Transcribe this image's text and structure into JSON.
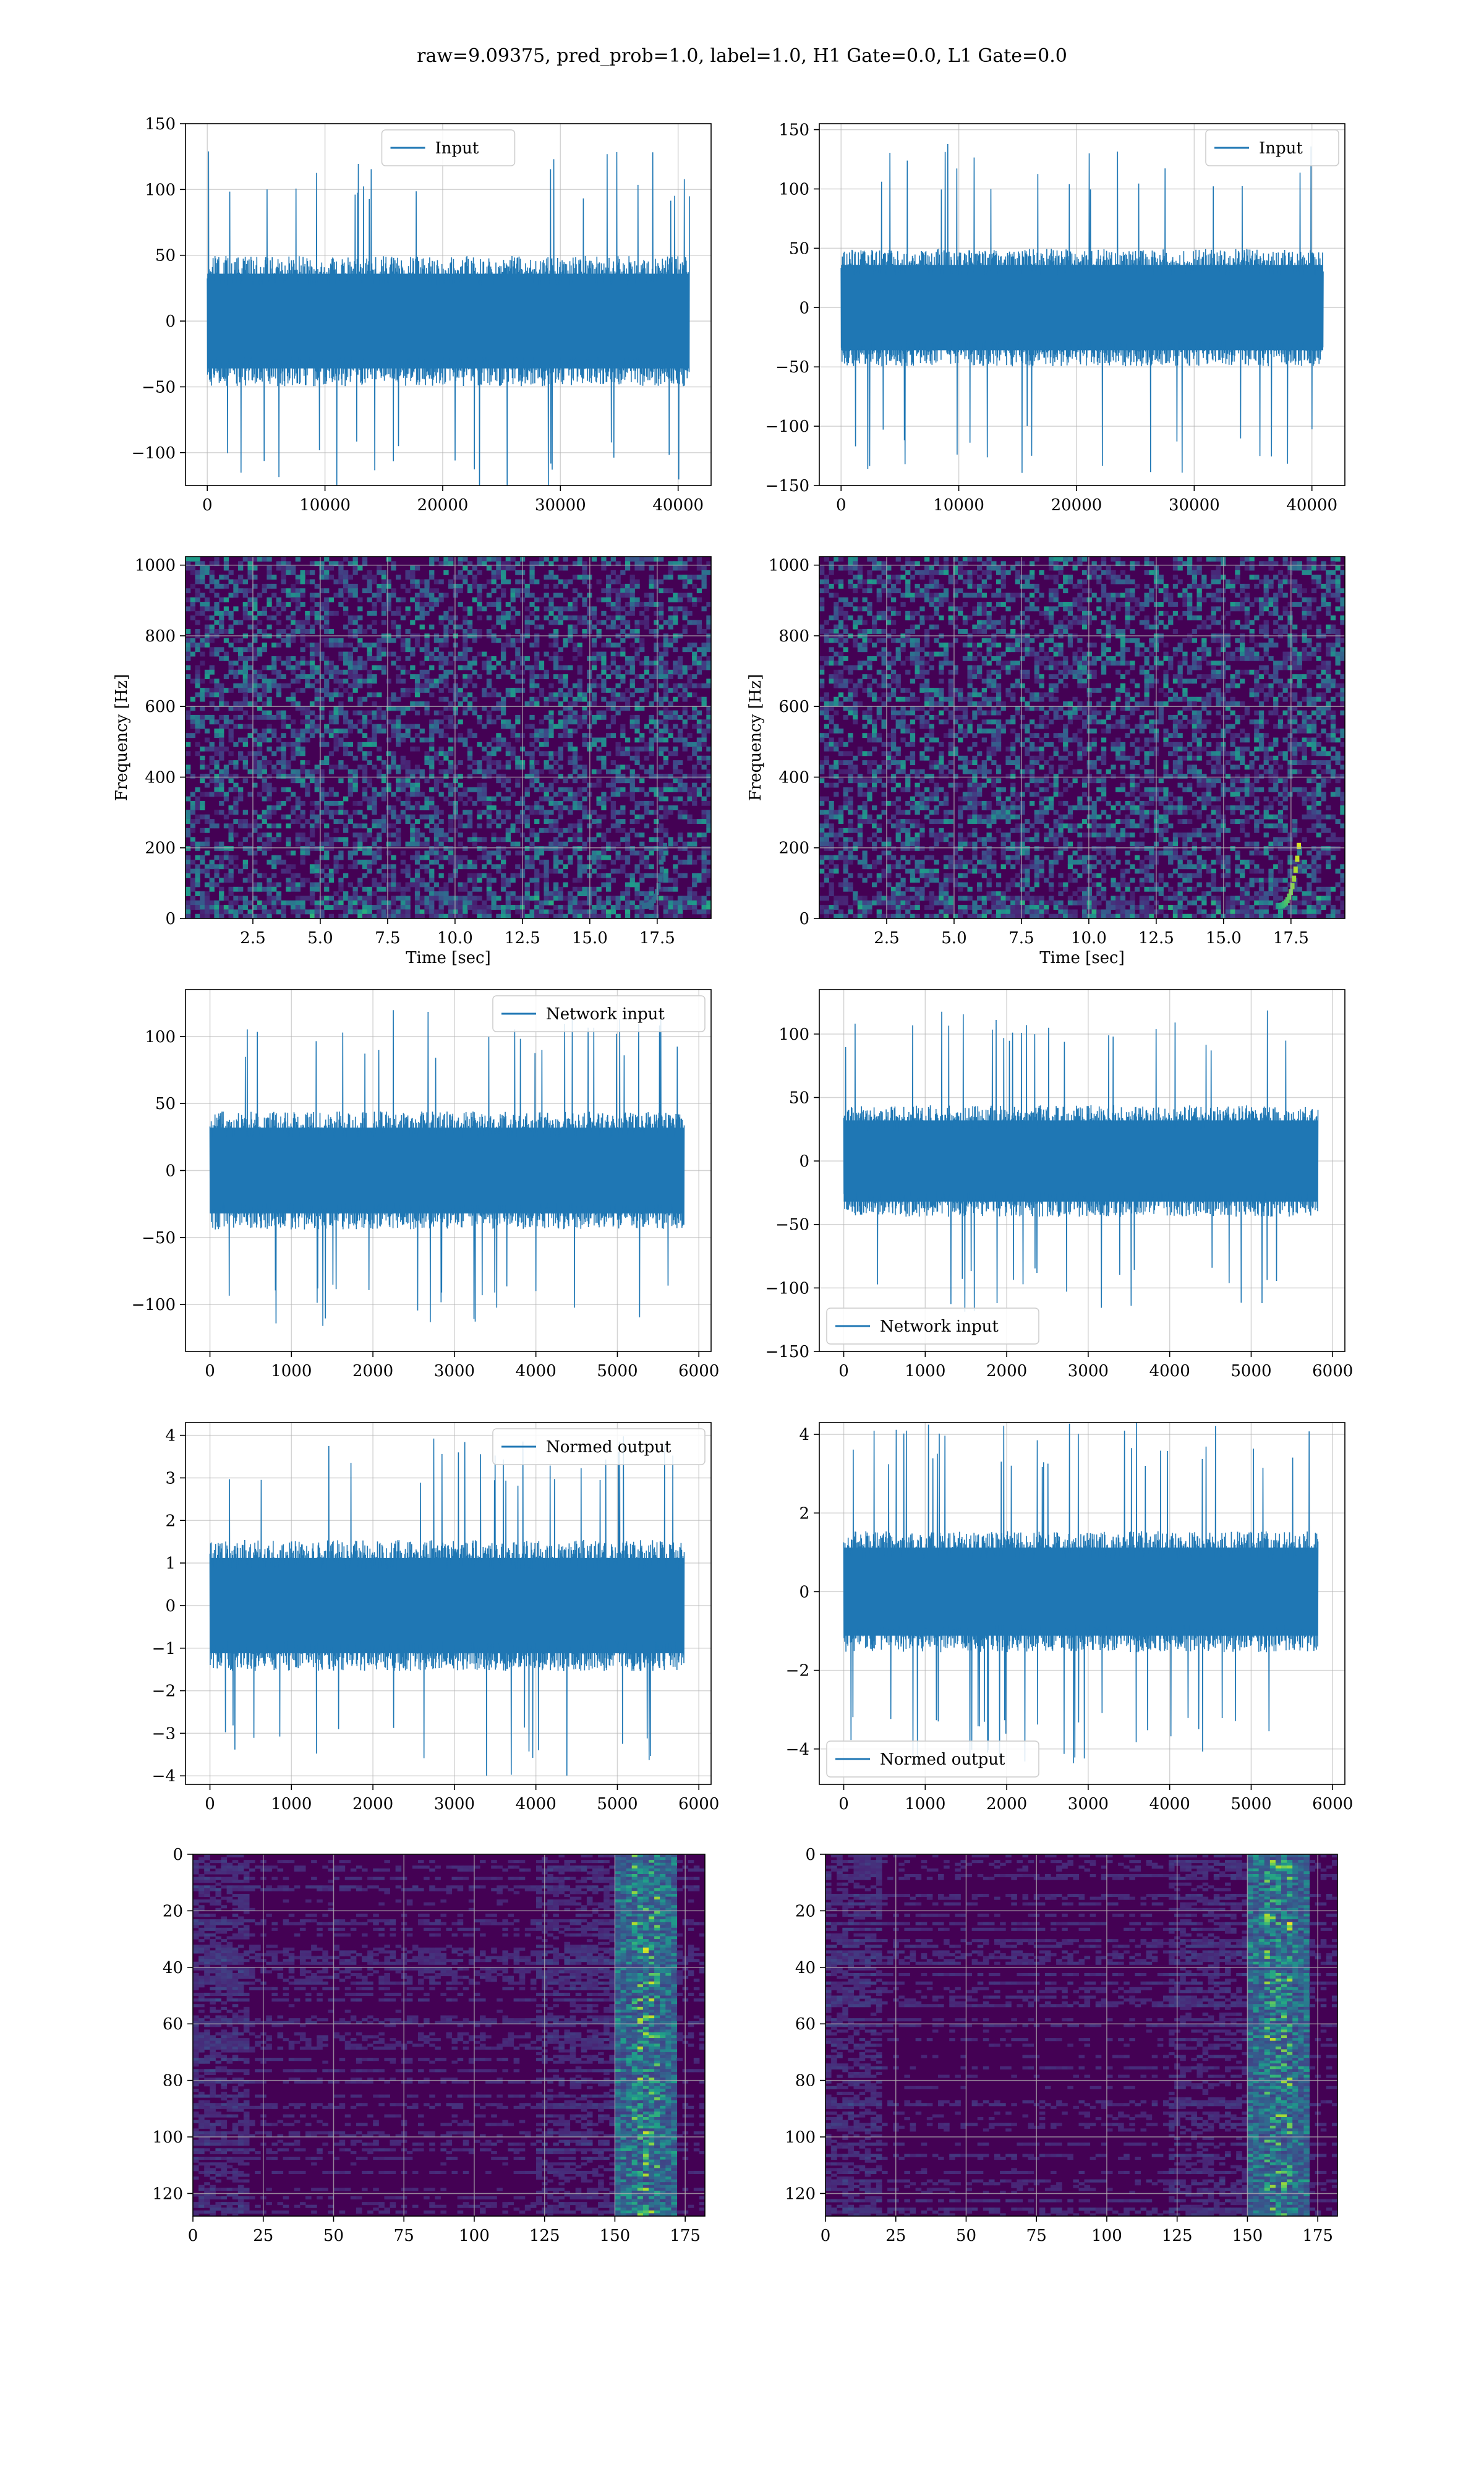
{
  "figure": {
    "title": "raw=9.09375, pred_prob=1.0, label=1.0, H1 Gate=0.0, L1 Gate=0.0",
    "colors": {
      "line": "#1f77b4",
      "viridis_low": "#440154",
      "grid": "#b0b0b0"
    }
  },
  "chart_data": [
    {
      "type": "line",
      "id": "h1-input",
      "xlabel": "",
      "ylabel": "",
      "xlim": [
        -1850,
        42800
      ],
      "ylim": [
        -125,
        150
      ],
      "xticks": [
        0,
        10000,
        20000,
        30000,
        40000
      ],
      "yticks": [
        -100,
        -50,
        0,
        50,
        100,
        150
      ],
      "grid": true,
      "legend_position": "top-center",
      "series": [
        {
          "name": "Input",
          "x_range": [
            0,
            40960
          ],
          "typical_amplitude": 45,
          "peak_amplitude": 130
        }
      ]
    },
    {
      "type": "line",
      "id": "l1-input",
      "xlabel": "",
      "ylabel": "",
      "xlim": [
        -1850,
        42800
      ],
      "ylim": [
        -150,
        155
      ],
      "xticks": [
        0,
        10000,
        20000,
        30000,
        40000
      ],
      "yticks": [
        -150,
        -100,
        -50,
        0,
        50,
        100,
        150
      ],
      "grid": true,
      "legend_position": "top-right",
      "series": [
        {
          "name": "Input",
          "x_range": [
            0,
            40960
          ],
          "typical_amplitude": 45,
          "peak_amplitude": 140
        }
      ]
    },
    {
      "type": "heatmap",
      "id": "h1-spectrogram",
      "xlabel": "Time [sec]",
      "ylabel": "Frequency [Hz]",
      "xlim": [
        0,
        19.5
      ],
      "ylim": [
        0,
        1024
      ],
      "xticks": [
        2.5,
        5.0,
        7.5,
        10.0,
        12.5,
        15.0,
        17.5
      ],
      "yticks": [
        0,
        200,
        400,
        600,
        800,
        1000
      ],
      "grid": true,
      "colormap": "viridis"
    },
    {
      "type": "heatmap",
      "id": "l1-spectrogram",
      "xlabel": "Time [sec]",
      "ylabel": "Frequency [Hz]",
      "xlim": [
        0,
        19.5
      ],
      "ylim": [
        0,
        1024
      ],
      "xticks": [
        2.5,
        5.0,
        7.5,
        10.0,
        12.5,
        15.0,
        17.5
      ],
      "yticks": [
        0,
        200,
        400,
        600,
        800,
        1000
      ],
      "grid": true,
      "colormap": "viridis"
    },
    {
      "type": "line",
      "id": "h1-network-input",
      "xlabel": "",
      "ylabel": "",
      "xlim": [
        -300,
        6150
      ],
      "ylim": [
        -135,
        135
      ],
      "xticks": [
        0,
        1000,
        2000,
        3000,
        4000,
        5000,
        6000
      ],
      "yticks": [
        -100,
        -50,
        0,
        50,
        100
      ],
      "grid": true,
      "legend_position": "top-right",
      "series": [
        {
          "name": "Network input",
          "x_range": [
            0,
            5820
          ],
          "typical_amplitude": 40,
          "peak_amplitude": 120
        }
      ]
    },
    {
      "type": "line",
      "id": "l1-network-input",
      "xlabel": "",
      "ylabel": "",
      "xlim": [
        -300,
        6150
      ],
      "ylim": [
        -150,
        135
      ],
      "xticks": [
        0,
        1000,
        2000,
        3000,
        4000,
        5000,
        6000
      ],
      "yticks": [
        -150,
        -100,
        -50,
        0,
        50,
        100
      ],
      "grid": true,
      "legend_position": "bottom-left",
      "series": [
        {
          "name": "Network input",
          "x_range": [
            0,
            5820
          ],
          "typical_amplitude": 40,
          "peak_amplitude": 120
        }
      ]
    },
    {
      "type": "line",
      "id": "h1-normed-output",
      "xlabel": "",
      "ylabel": "",
      "xlim": [
        -300,
        6150
      ],
      "ylim": [
        -4.2,
        4.3
      ],
      "xticks": [
        0,
        1000,
        2000,
        3000,
        4000,
        5000,
        6000
      ],
      "yticks": [
        -4,
        -3,
        -2,
        -1,
        0,
        1,
        2,
        3,
        4
      ],
      "grid": true,
      "legend_position": "top-right",
      "series": [
        {
          "name": "Normed output",
          "x_range": [
            0,
            5820
          ],
          "typical_amplitude": 1.4,
          "peak_amplitude": 4.0
        }
      ]
    },
    {
      "type": "line",
      "id": "l1-normed-output",
      "xlabel": "",
      "ylabel": "",
      "xlim": [
        -300,
        6150
      ],
      "ylim": [
        -4.9,
        4.3
      ],
      "xticks": [
        0,
        1000,
        2000,
        3000,
        4000,
        5000,
        6000
      ],
      "yticks": [
        -4,
        -2,
        0,
        2,
        4
      ],
      "grid": true,
      "legend_position": "bottom-left",
      "series": [
        {
          "name": "Normed output",
          "x_range": [
            0,
            5820
          ],
          "typical_amplitude": 1.4,
          "peak_amplitude": 4.4
        }
      ]
    },
    {
      "type": "heatmap",
      "id": "h1-feature-map",
      "xlabel": "",
      "ylabel": "",
      "xlim": [
        0,
        182
      ],
      "ylim": [
        128,
        0
      ],
      "xticks": [
        0,
        25,
        50,
        75,
        100,
        125,
        150,
        175
      ],
      "yticks": [
        0,
        20,
        40,
        60,
        80,
        100,
        120
      ],
      "grid": true,
      "colormap": "viridis"
    },
    {
      "type": "heatmap",
      "id": "l1-feature-map",
      "xlabel": "",
      "ylabel": "",
      "xlim": [
        0,
        182
      ],
      "ylim": [
        128,
        0
      ],
      "xticks": [
        0,
        25,
        50,
        75,
        100,
        125,
        150,
        175
      ],
      "yticks": [
        0,
        20,
        40,
        60,
        80,
        100,
        120
      ],
      "grid": true,
      "colormap": "viridis"
    }
  ]
}
